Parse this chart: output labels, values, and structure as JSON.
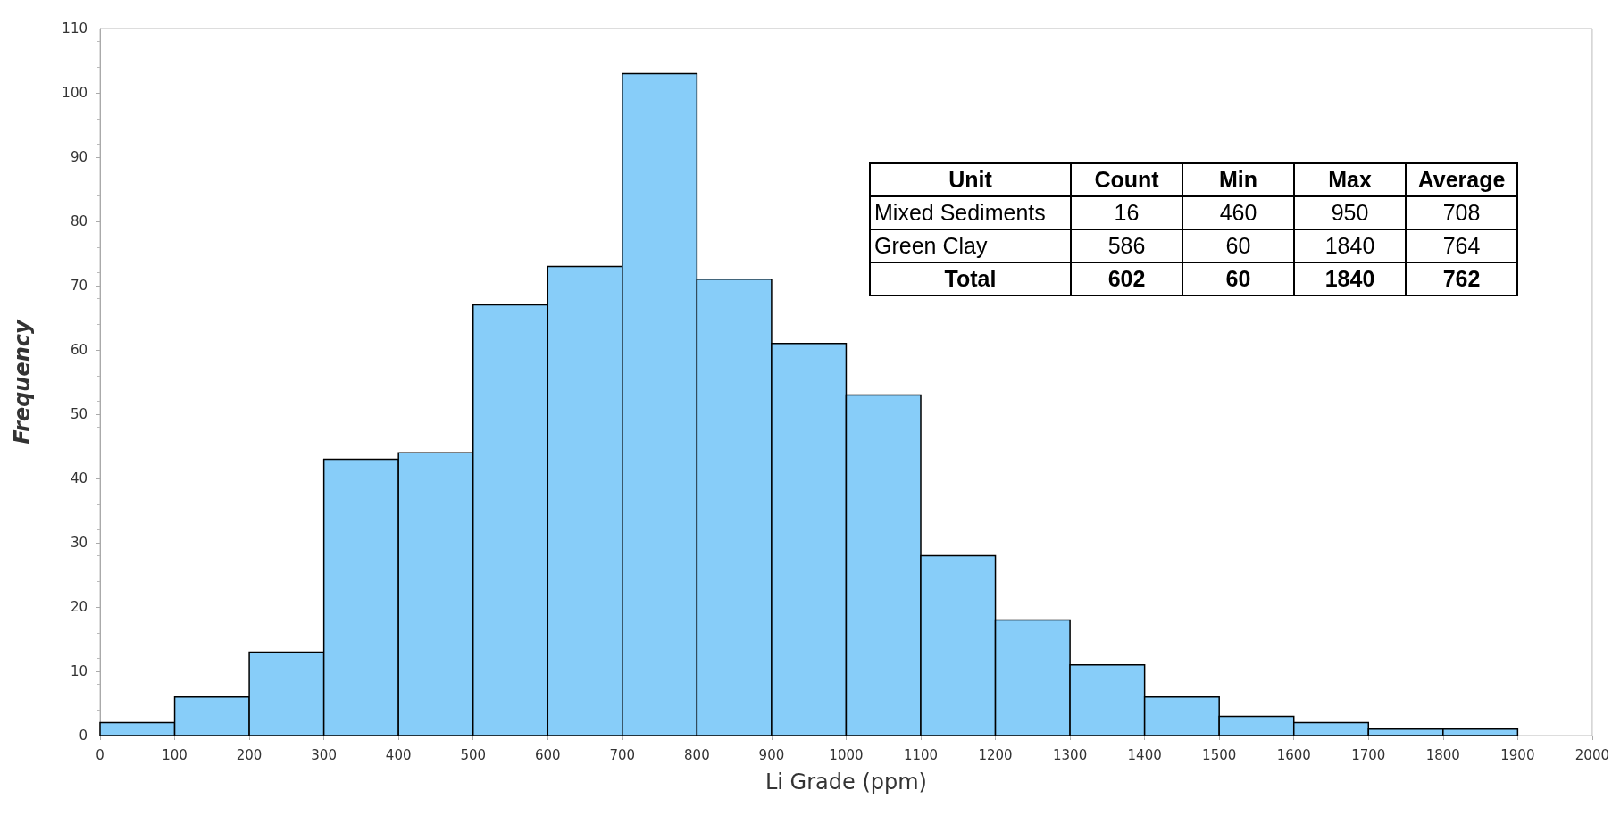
{
  "chart_data": {
    "type": "histogram",
    "xlabel": "Li Grade (ppm)",
    "ylabel": "Frequency",
    "bins": [
      0,
      100,
      200,
      300,
      400,
      500,
      600,
      700,
      800,
      900,
      1000,
      1100,
      1200,
      1300,
      1400,
      1500,
      1600,
      1700,
      1800,
      1900
    ],
    "values": [
      2,
      6,
      13,
      43,
      44,
      67,
      73,
      103,
      71,
      61,
      53,
      28,
      18,
      11,
      6,
      3,
      2,
      1,
      1
    ],
    "color": "#87cdf9",
    "xlim": [
      0,
      2000
    ],
    "xticks": [
      0,
      100,
      200,
      300,
      400,
      500,
      600,
      700,
      800,
      900,
      1000,
      1100,
      1200,
      1300,
      1400,
      1500,
      1600,
      1700,
      1800,
      1900,
      2000
    ],
    "ylim": [
      0,
      110
    ],
    "yticks": [
      0,
      10,
      20,
      30,
      40,
      50,
      60,
      70,
      80,
      90,
      100,
      110
    ],
    "grid": false,
    "annotations": [
      "Unit",
      "Count",
      "Min",
      "Max",
      "Average",
      "Mixed Sediments",
      "16",
      "460",
      "950",
      "708",
      "Green Clay",
      "586",
      "60",
      "1840",
      "764",
      "Total",
      "602",
      "60",
      "1840",
      "762"
    ]
  }
}
